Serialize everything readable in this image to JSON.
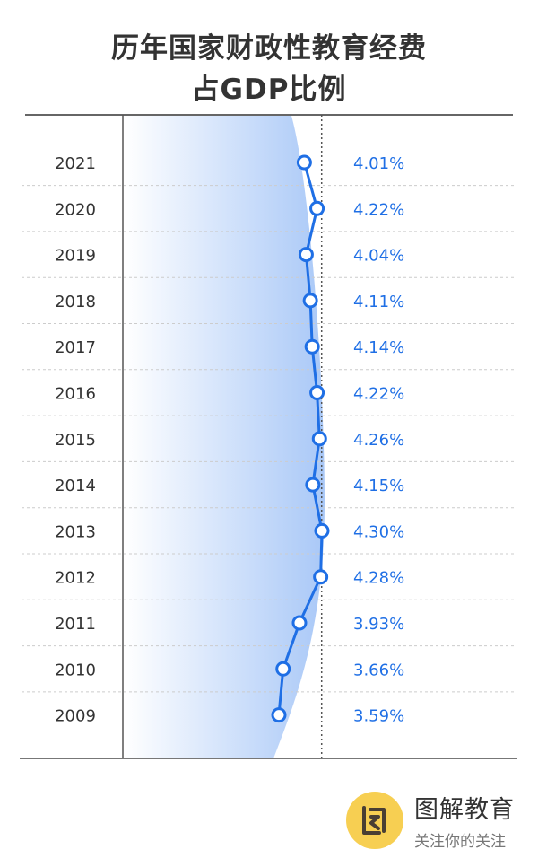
{
  "chart_data": {
    "type": "line",
    "title_line1": "历年国家财政性教育经费",
    "title_line2": "占GDP比例",
    "categories": [
      "2021",
      "2020",
      "2019",
      "2018",
      "2017",
      "2016",
      "2015",
      "2014",
      "2013",
      "2012",
      "2011",
      "2010",
      "2009"
    ],
    "values": [
      4.01,
      4.22,
      4.04,
      4.11,
      4.14,
      4.22,
      4.26,
      4.15,
      4.3,
      4.28,
      3.93,
      3.66,
      3.59
    ],
    "labels": [
      "4.01%",
      "4.22%",
      "4.04%",
      "4.11%",
      "4.14%",
      "4.22%",
      "4.26%",
      "4.15%",
      "4.30%",
      "4.28%",
      "3.93%",
      "3.66%",
      "3.59%"
    ],
    "reference_line": 4.0,
    "line_color": "#1f6fe5",
    "label_color": "#1f6fe5"
  },
  "brand": {
    "name": "图解教育",
    "slogan": "关注你的关注"
  }
}
